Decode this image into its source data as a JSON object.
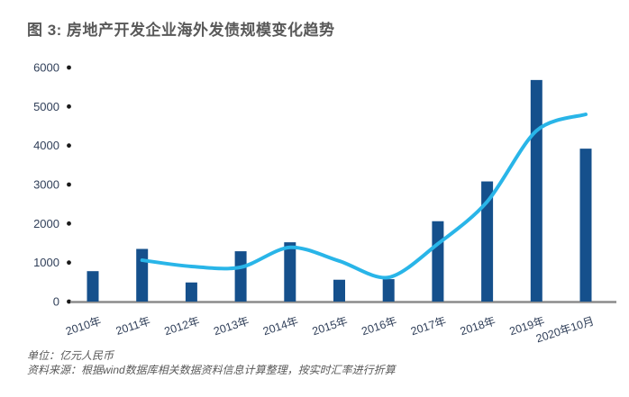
{
  "title": "图 3: 房地产开发企业海外发债规模变化趋势",
  "footer": {
    "unit_line": "单位：亿元人民币",
    "source_line": "资料来源：根据wind数据库相关数据资料信息计算整理，按实时汇率进行折算"
  },
  "colors": {
    "bar": "#15508c",
    "line": "#29b5e8",
    "axis_line": "#8c8c8c",
    "tick_dot": "#1a1a1a",
    "axis_label": "#31405a",
    "title_text": "#595959",
    "footer_text": "#595959"
  },
  "chart_data": {
    "type": "bar",
    "title": "图 3: 房地产产开发企业海外发债规模变化趋势",
    "categories": [
      "2010年",
      "2011年",
      "2012年",
      "2013年",
      "2014年",
      "2015年",
      "2016年",
      "2017年",
      "2018年",
      "2019年",
      "2020年10月"
    ],
    "series": [
      {
        "type": "bar",
        "start_index": 0,
        "values": [
          780,
          1350,
          490,
          1290,
          1520,
          560,
          575,
          2060,
          3080,
          5680,
          3920
        ]
      },
      {
        "type": "line",
        "start_index": 1,
        "values": [
          1060,
          900,
          880,
          1390,
          1040,
          620,
          1480,
          2560,
          4380,
          4800
        ]
      }
    ],
    "xlabel": "",
    "ylabel": "",
    "ylim": [
      0,
      6000
    ],
    "y_ticks": [
      0,
      1000,
      2000,
      3000,
      4000,
      5000,
      6000
    ],
    "grid": false,
    "legend_position": "none",
    "tick_style": "dot-markers-on-y-axis",
    "x_label_rotation_deg": -18
  }
}
